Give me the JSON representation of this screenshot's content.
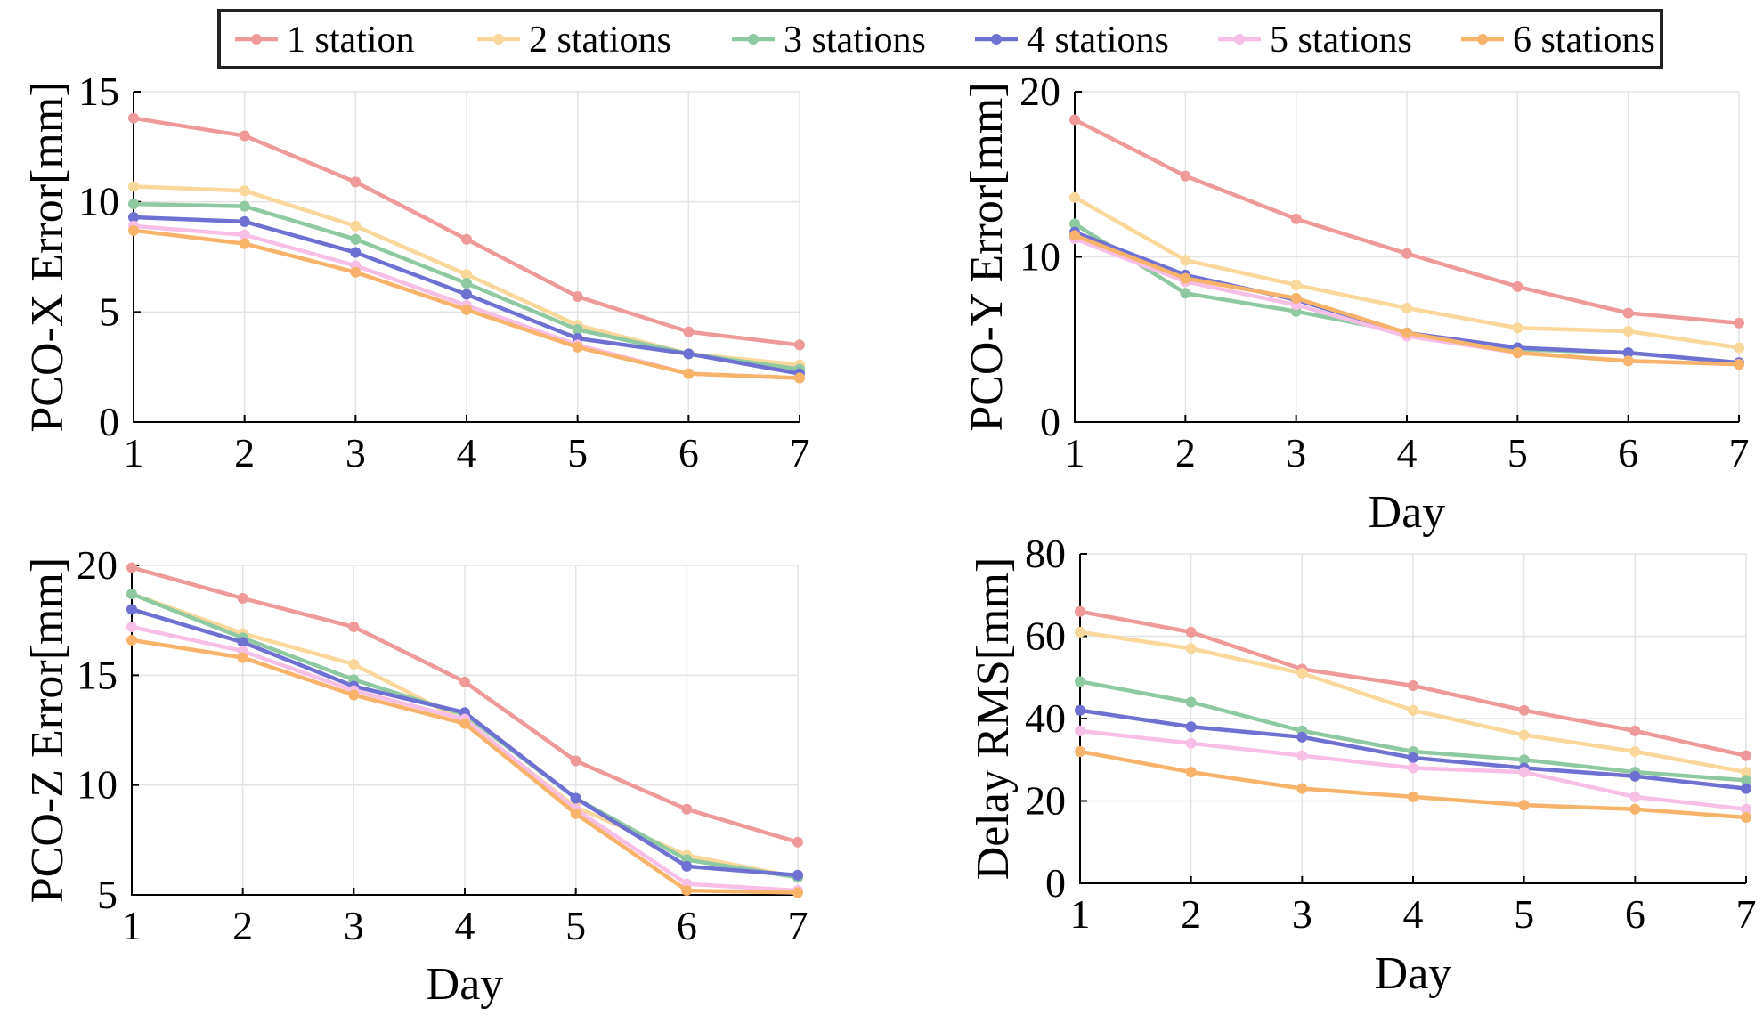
{
  "legend": {
    "entries": [
      "1 station",
      "2 stations",
      "3 stations",
      "4 stations",
      "5 stations",
      "6 stations"
    ]
  },
  "colors": {
    "series": [
      "#ee9a9a",
      "#fad79a",
      "#8ec9a1",
      "#6e70d2",
      "#f8bfe6",
      "#f8b36b"
    ],
    "grid": "#e3e3e3",
    "axis": "#000000"
  },
  "chart_data": [
    {
      "type": "line",
      "title": "",
      "xlabel": "",
      "ylabel": "PCO-X Error[mm]",
      "x": [
        1,
        2,
        3,
        4,
        5,
        6,
        7
      ],
      "xlim": [
        1,
        7
      ],
      "ylim": [
        0,
        15
      ],
      "yticks": [
        0,
        5,
        10,
        15
      ],
      "grid": true,
      "series": [
        {
          "name": "1 station",
          "values": [
            13.8,
            13.0,
            10.9,
            8.3,
            5.7,
            4.1,
            3.5
          ]
        },
        {
          "name": "2 stations",
          "values": [
            10.7,
            10.5,
            8.9,
            6.7,
            4.4,
            3.1,
            2.6
          ]
        },
        {
          "name": "3 stations",
          "values": [
            9.9,
            9.8,
            8.3,
            6.3,
            4.2,
            3.1,
            2.4
          ]
        },
        {
          "name": "4 stations",
          "values": [
            9.3,
            9.1,
            7.7,
            5.8,
            3.8,
            3.1,
            2.2
          ]
        },
        {
          "name": "5 stations",
          "values": [
            8.9,
            8.5,
            7.1,
            5.3,
            3.5,
            2.2,
            2.0
          ]
        },
        {
          "name": "6 stations",
          "values": [
            8.7,
            8.1,
            6.8,
            5.1,
            3.4,
            2.2,
            2.0
          ]
        }
      ]
    },
    {
      "type": "line",
      "title": "",
      "xlabel": "Day",
      "ylabel": "PCO-Y Error[mm]",
      "x": [
        1,
        2,
        3,
        4,
        5,
        6,
        7
      ],
      "xlim": [
        1,
        7
      ],
      "ylim": [
        0,
        20
      ],
      "yticks": [
        0,
        10,
        20
      ],
      "grid": true,
      "series": [
        {
          "name": "1 station",
          "values": [
            18.3,
            14.9,
            12.3,
            10.2,
            8.2,
            6.6,
            6.0
          ]
        },
        {
          "name": "2 stations",
          "values": [
            13.6,
            9.8,
            8.3,
            6.9,
            5.7,
            5.5,
            4.5
          ]
        },
        {
          "name": "3 stations",
          "values": [
            12.0,
            7.8,
            6.7,
            5.4,
            4.4,
            4.2,
            3.6
          ]
        },
        {
          "name": "4 stations",
          "values": [
            11.5,
            8.9,
            7.4,
            5.4,
            4.5,
            4.2,
            3.6
          ]
        },
        {
          "name": "5 stations",
          "values": [
            11.1,
            8.5,
            7.1,
            5.2,
            4.2,
            3.7,
            3.5
          ]
        },
        {
          "name": "6 stations",
          "values": [
            11.3,
            8.7,
            7.5,
            5.4,
            4.2,
            3.7,
            3.5
          ]
        }
      ]
    },
    {
      "type": "line",
      "title": "",
      "xlabel": "Day",
      "ylabel": "PCO-Z Error[mm]",
      "x": [
        1,
        2,
        3,
        4,
        5,
        6,
        7
      ],
      "xlim": [
        1,
        7
      ],
      "ylim": [
        5,
        20
      ],
      "yticks": [
        5,
        10,
        15,
        20
      ],
      "grid": true,
      "series": [
        {
          "name": "1 station",
          "values": [
            19.9,
            18.5,
            17.2,
            14.7,
            11.1,
            8.9,
            7.4
          ]
        },
        {
          "name": "2 stations",
          "values": [
            18.7,
            16.9,
            15.5,
            12.9,
            9.0,
            6.8,
            5.8
          ]
        },
        {
          "name": "3 stations",
          "values": [
            18.7,
            16.7,
            14.8,
            13.2,
            9.4,
            6.6,
            5.8
          ]
        },
        {
          "name": "4 stations",
          "values": [
            18.0,
            16.5,
            14.5,
            13.3,
            9.4,
            6.3,
            5.9
          ]
        },
        {
          "name": "5 stations",
          "values": [
            17.2,
            16.1,
            14.3,
            13.0,
            8.9,
            5.5,
            5.2
          ]
        },
        {
          "name": "6 stations",
          "values": [
            16.6,
            15.8,
            14.1,
            12.8,
            8.7,
            5.2,
            5.1
          ]
        }
      ]
    },
    {
      "type": "line",
      "title": "",
      "xlabel": "Day",
      "ylabel": "Delay RMS[mm]",
      "x": [
        1,
        2,
        3,
        4,
        5,
        6,
        7
      ],
      "xlim": [
        1,
        7
      ],
      "ylim": [
        0,
        80
      ],
      "yticks": [
        0,
        20,
        40,
        60,
        80
      ],
      "grid": true,
      "series": [
        {
          "name": "1 station",
          "values": [
            66,
            61,
            52,
            48,
            42,
            37,
            31
          ]
        },
        {
          "name": "2 stations",
          "values": [
            61,
            57,
            51,
            42,
            36,
            32,
            27
          ]
        },
        {
          "name": "3 stations",
          "values": [
            49,
            44,
            37,
            32,
            30,
            27,
            25
          ]
        },
        {
          "name": "4 stations",
          "values": [
            42,
            38,
            35.5,
            30.5,
            28,
            26,
            23
          ]
        },
        {
          "name": "5 stations",
          "values": [
            37,
            34,
            31,
            28,
            27,
            21,
            18
          ]
        },
        {
          "name": "6 stations",
          "values": [
            32,
            27,
            23,
            21,
            19,
            18,
            16
          ]
        }
      ]
    }
  ]
}
